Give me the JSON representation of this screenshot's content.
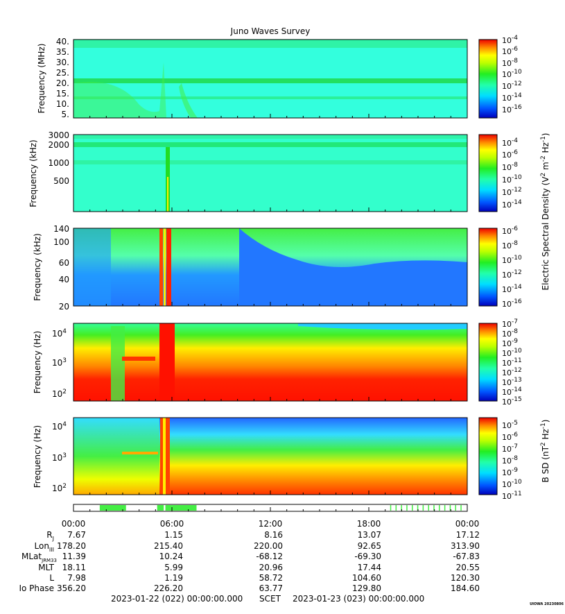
{
  "title": "Juno Waves Survey",
  "panels": [
    {
      "ylabel": "Frequency (MHz)",
      "yticks": [
        "40.",
        "35.",
        "30.",
        "25.",
        "20.",
        "15.",
        "10.",
        "5."
      ],
      "colorbar": {
        "ticks": [
          {
            "base": "10",
            "exp": "-4"
          },
          {
            "base": "10",
            "exp": "-6"
          },
          {
            "base": "10",
            "exp": "-8"
          },
          {
            "base": "10",
            "exp": "-10"
          },
          {
            "base": "10",
            "exp": "-12"
          },
          {
            "base": "10",
            "exp": "-14"
          },
          {
            "base": "10",
            "exp": "-16"
          }
        ]
      }
    },
    {
      "ylabel": "Frequency (kHz)",
      "yticks": [
        "3000",
        "2000",
        "1000",
        "500"
      ],
      "colorbar": {
        "ticks": [
          {
            "base": "10",
            "exp": "-4"
          },
          {
            "base": "10",
            "exp": "-6"
          },
          {
            "base": "10",
            "exp": "-8"
          },
          {
            "base": "10",
            "exp": "-10"
          },
          {
            "base": "10",
            "exp": "-12"
          },
          {
            "base": "10",
            "exp": "-14"
          }
        ]
      }
    },
    {
      "ylabel": "Frequency (kHz)",
      "yticks": [
        "140",
        "100",
        "60",
        "40",
        "20"
      ],
      "colorbar": {
        "ticks": [
          {
            "base": "10",
            "exp": "-6"
          },
          {
            "base": "10",
            "exp": "-8"
          },
          {
            "base": "10",
            "exp": "-10"
          },
          {
            "base": "10",
            "exp": "-12"
          },
          {
            "base": "10",
            "exp": "-14"
          },
          {
            "base": "10",
            "exp": "-16"
          }
        ]
      }
    },
    {
      "ylabel": "Frequency (Hz)",
      "yticks": [
        {
          "base": "10",
          "exp": "4"
        },
        {
          "base": "10",
          "exp": "3"
        },
        {
          "base": "10",
          "exp": "2"
        }
      ],
      "colorbar": {
        "ticks": [
          {
            "base": "10",
            "exp": "-7"
          },
          {
            "base": "10",
            "exp": "-8"
          },
          {
            "base": "10",
            "exp": "-9"
          },
          {
            "base": "10",
            "exp": "-10"
          },
          {
            "base": "10",
            "exp": "-11"
          },
          {
            "base": "10",
            "exp": "-12"
          },
          {
            "base": "10",
            "exp": "-13"
          },
          {
            "base": "10",
            "exp": "-14"
          },
          {
            "base": "10",
            "exp": "-15"
          }
        ]
      }
    },
    {
      "ylabel": "Frequency (Hz)",
      "yticks": [
        {
          "base": "10",
          "exp": "4"
        },
        {
          "base": "10",
          "exp": "3"
        },
        {
          "base": "10",
          "exp": "2"
        }
      ],
      "colorbar": {
        "ticks": [
          {
            "base": "10",
            "exp": "-5"
          },
          {
            "base": "10",
            "exp": "-6"
          },
          {
            "base": "10",
            "exp": "-7"
          },
          {
            "base": "10",
            "exp": "-8"
          },
          {
            "base": "10",
            "exp": "-9"
          },
          {
            "base": "10",
            "exp": "-10"
          },
          {
            "base": "10",
            "exp": "-11"
          }
        ]
      }
    }
  ],
  "colorbar_labels": {
    "electric": {
      "prefix": "Electric Spectral Density (V",
      "sup1": "2",
      "mid": " m",
      "sup2": "-2",
      "mid2": " Hz",
      "sup3": "-1",
      "suffix": ")"
    },
    "magnetic": {
      "prefix": "B SD (nT",
      "sup1": "2",
      "mid": " Hz",
      "sup2": "-1",
      "suffix": ")"
    }
  },
  "time_ticks": [
    "00:00",
    "06:00",
    "12:00",
    "18:00",
    "00:00"
  ],
  "ephemeris": [
    {
      "label": "R",
      "sub": "J",
      "values": [
        "7.67",
        "1.15",
        "8.16",
        "13.07",
        "17.12"
      ]
    },
    {
      "label": "Lon",
      "sub": "III",
      "values": [
        "178.20",
        "215.40",
        "220.00",
        "92.65",
        "313.90"
      ]
    },
    {
      "label": "MLat",
      "sub": "JRM33",
      "values": [
        "11.39",
        "10.24",
        "-68.12",
        "-69.30",
        "-67.83"
      ]
    },
    {
      "label": "MLT",
      "sub": "",
      "values": [
        "18.11",
        "5.99",
        "20.96",
        "17.44",
        "20.55"
      ]
    },
    {
      "label": "L",
      "sub": "",
      "values": [
        "7.98",
        "1.19",
        "58.72",
        "104.60",
        "120.30"
      ]
    },
    {
      "label": "Io Phase",
      "sub": "",
      "values": [
        "356.20",
        "226.20",
        "63.77",
        "129.80",
        "184.60"
      ]
    }
  ],
  "footer": {
    "start": "2023-01-22 (022) 00:00:00.000",
    "scet": "SCET",
    "end": "2023-01-23 (023) 00:00:00.000"
  },
  "watermark": "UIOWA 20230806",
  "colors": {
    "background_cyan": "#33ffdd",
    "band_green": "#22e878",
    "low_red": "#ff2200",
    "hiss_blue": "#2299ff",
    "status_green": "#44ee44"
  },
  "chart_data": {
    "type": "heatmap",
    "title": "Juno Waves Survey",
    "x_range": [
      "2023-01-22 00:00",
      "2023-01-23 00:00"
    ],
    "panels": [
      {
        "ylabel": "Frequency (MHz)",
        "ylim": [
          3,
          41
        ],
        "scale": "linear",
        "colorbar_range": [
          1e-16,
          0.0001
        ]
      },
      {
        "ylabel": "Frequency (kHz)",
        "ylim": [
          140,
          3000
        ],
        "scale": "log",
        "colorbar_range": [
          1e-15,
          0.0001
        ]
      },
      {
        "ylabel": "Frequency (kHz)",
        "ylim": [
          20,
          140
        ],
        "scale": "log",
        "colorbar_range": [
          1e-16,
          1e-06
        ]
      },
      {
        "ylabel": "Frequency (Hz)",
        "ylim": [
          50,
          20000
        ],
        "scale": "log",
        "colorbar_range": [
          1e-15,
          1e-07
        ]
      },
      {
        "ylabel": "Frequency (Hz)",
        "ylim": [
          50,
          20000
        ],
        "scale": "log",
        "colorbar_range": [
          1e-11,
          1e-05
        ]
      }
    ],
    "status_segments_hours": [
      [
        1.6,
        3.2
      ],
      [
        5.1,
        5.5
      ],
      [
        5.6,
        7.5
      ]
    ],
    "status_ticks_start_hour": 19.3
  }
}
